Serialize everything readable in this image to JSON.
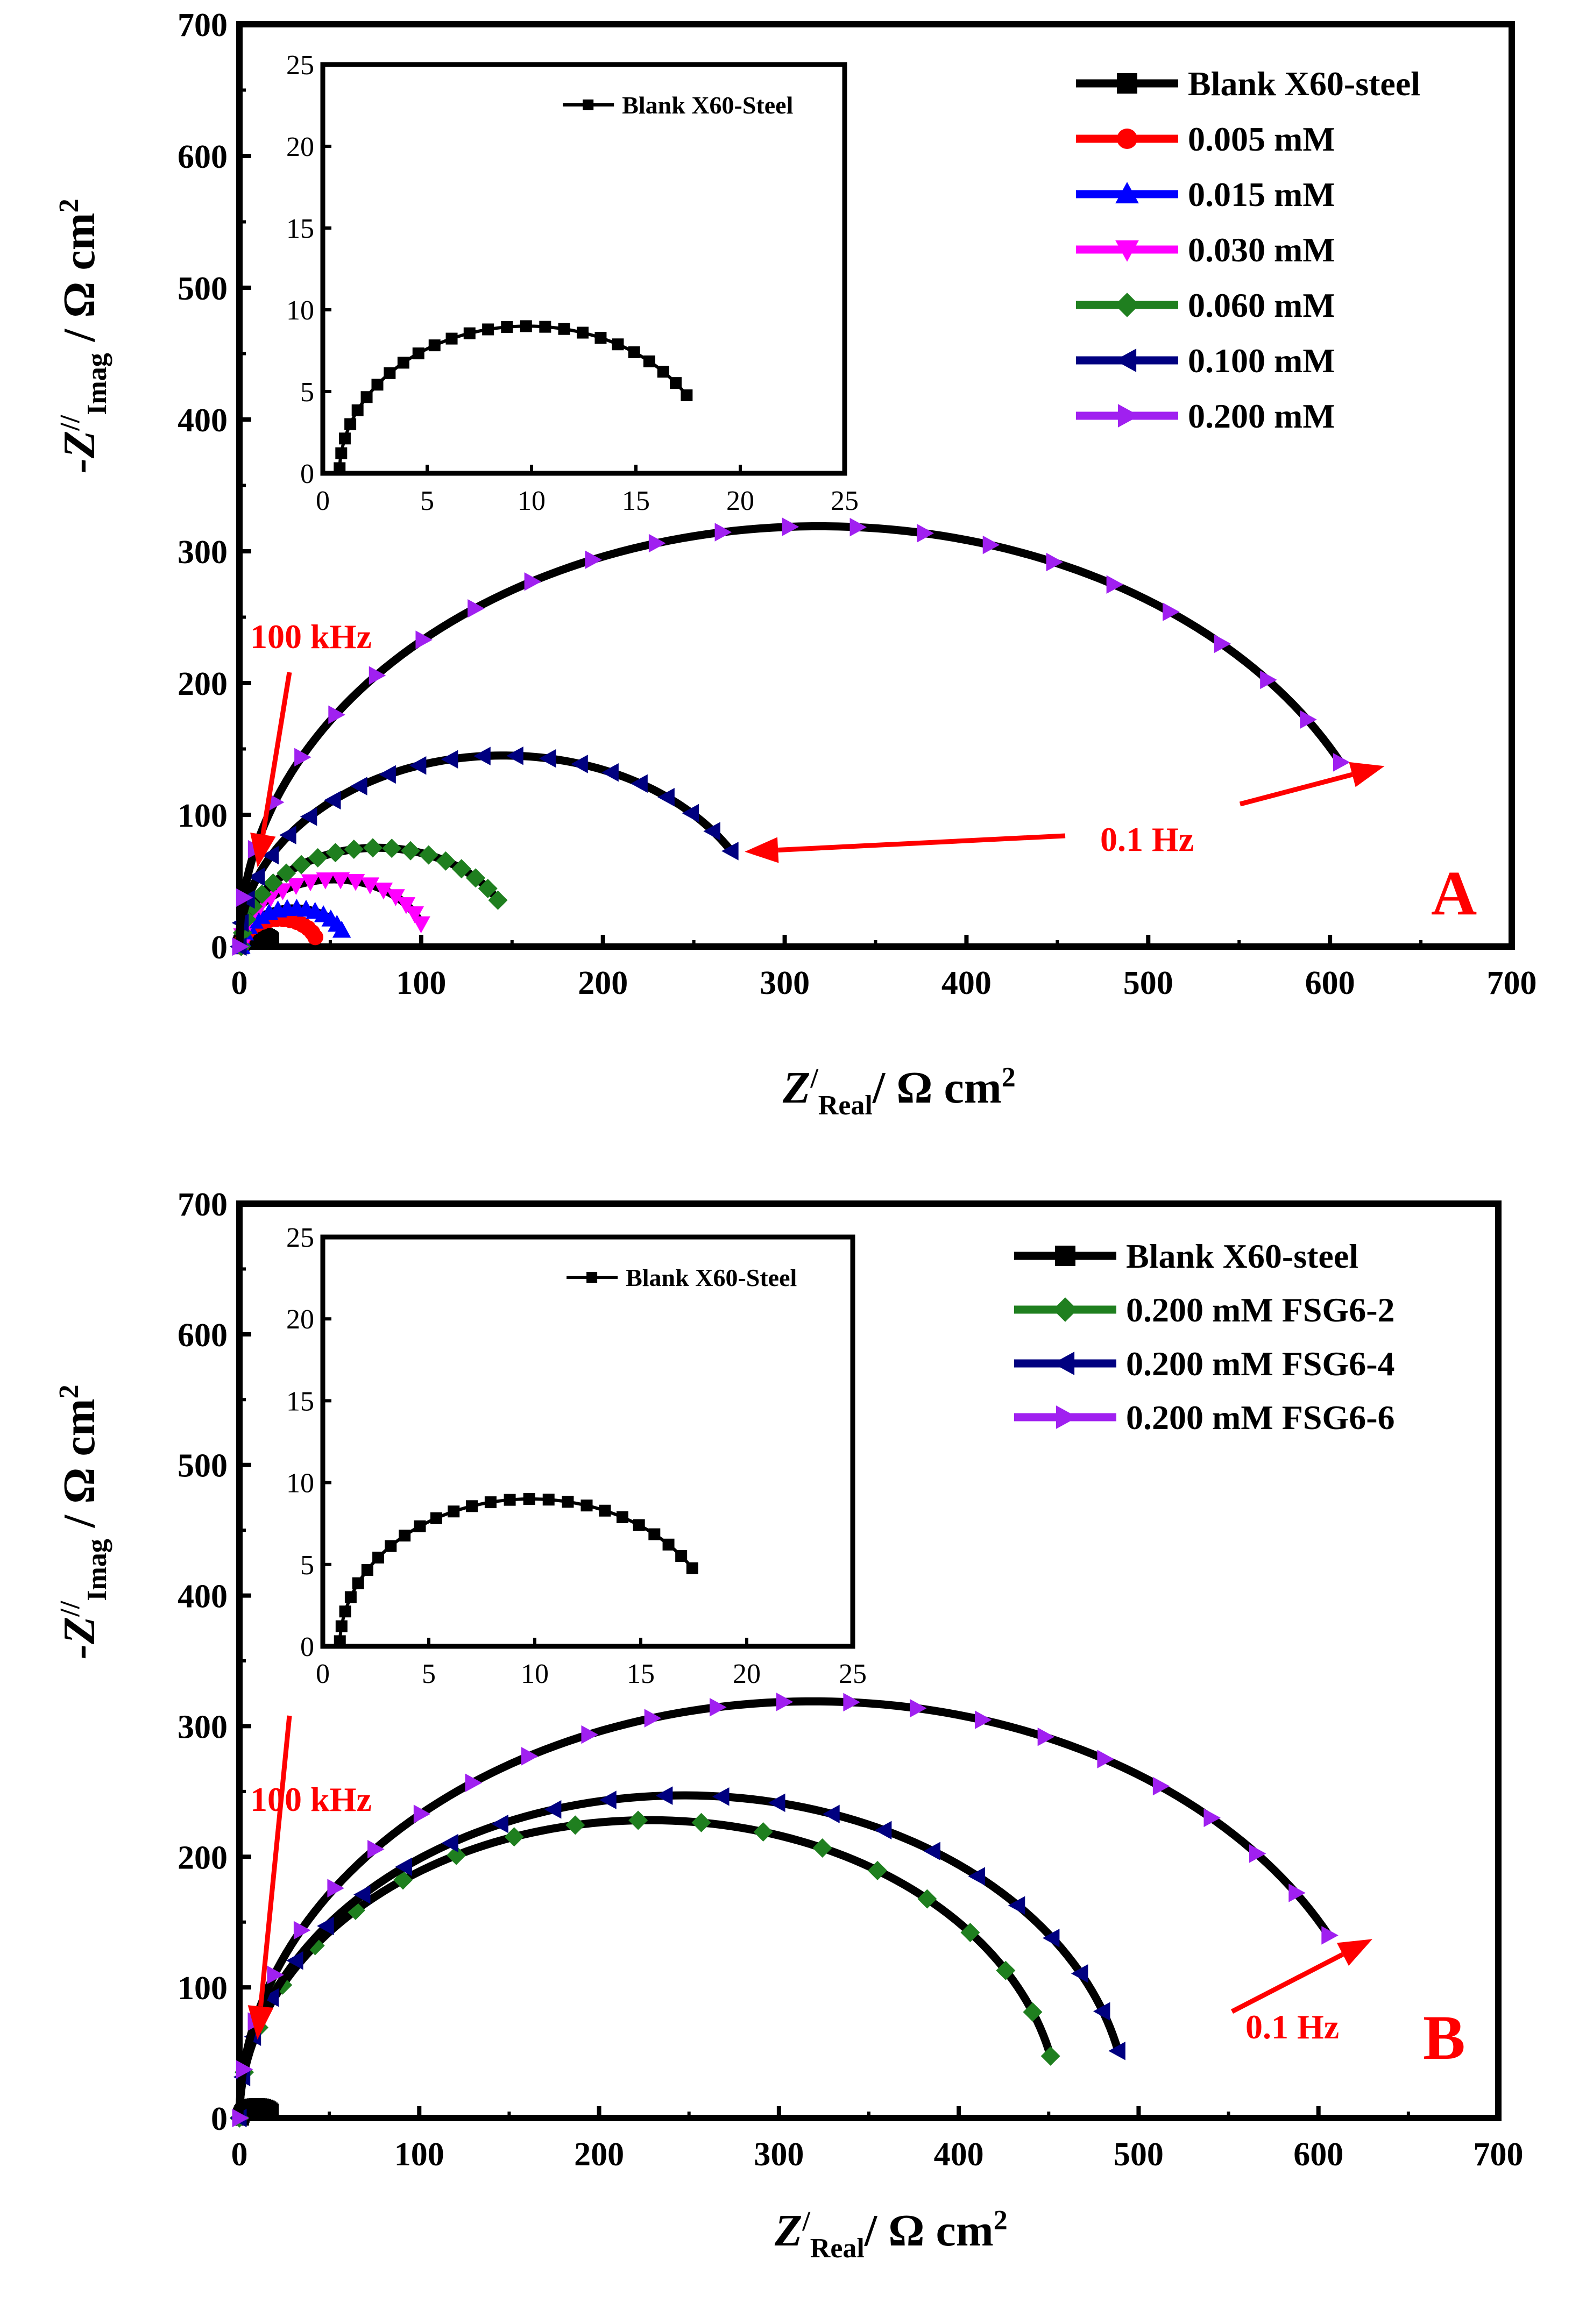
{
  "chart_data": [
    {
      "type": "line",
      "panel_label": "B",
      "title": "",
      "xlabel_main": "Z",
      "xlabel_sup": "/",
      "xlabel_sub": "Real",
      "xlabel_rest": "/ Ω cm",
      "xlabel_exp": "2",
      "ylabel_main": "-Z",
      "ylabel_sup": "//",
      "ylabel_sub": "Imag",
      "ylabel_rest": "/ Ω cm",
      "ylabel_exp": "2",
      "xlim": [
        0,
        700
      ],
      "ylim": [
        0,
        700
      ],
      "xticks": [
        "0",
        "100",
        "200",
        "300",
        "400",
        "500",
        "600",
        "700"
      ],
      "yticks": [
        "0",
        "100",
        "200",
        "300",
        "400",
        "500",
        "600",
        "700"
      ],
      "legend_position": "top-right",
      "annotations": [
        {
          "text": "100 kHz",
          "target_x": 10,
          "target_y": 60
        },
        {
          "text": "0.1 Hz",
          "target_x": 630,
          "target_y": 137
        }
      ],
      "series": [
        {
          "name": "Blank X60-steel",
          "color": "#000000",
          "marker": "square",
          "cx": 9.8,
          "r": 9.0,
          "start": 182,
          "end": 328,
          "n": 21
        },
        {
          "name": "0.200 mM FSG6-2",
          "color": "#1f7f1f",
          "marker": "diamond",
          "cx": 228,
          "r": 228,
          "start": 180,
          "end": 348,
          "n": 20
        },
        {
          "name": "0.200 mM FSG6-4",
          "color": "#000080",
          "marker": "triangle-left",
          "cx": 247,
          "r": 247,
          "start": 180,
          "end": 348,
          "n": 24
        },
        {
          "name": "0.200 mM FSG6-6",
          "color": "#a020f0",
          "marker": "triangle-right",
          "cx": 319,
          "r": 319,
          "start": 180,
          "end": 334,
          "n": 24
        }
      ],
      "inset": {
        "xlim": [
          0,
          25
        ],
        "ylim": [
          0,
          25
        ],
        "xticks": [
          "0",
          "5",
          "10",
          "15",
          "20",
          "25"
        ],
        "yticks": [
          "0",
          "5",
          "10",
          "15",
          "20",
          "25"
        ],
        "legend": "Blank X60-Steel",
        "series": {
          "name": "Blank X60-Steel",
          "color": "#000000",
          "marker": "square",
          "cx": 9.8,
          "r": 9.0,
          "start": 182,
          "end": 328,
          "n": 26
        }
      }
    },
    {
      "type": "line",
      "panel_label": "A",
      "title": "",
      "xlabel_main": "Z",
      "xlabel_sup": "/",
      "xlabel_sub": "Real",
      "xlabel_rest": "/ Ω cm",
      "xlabel_exp": "2",
      "ylabel_main": "-Z",
      "ylabel_sup": "//",
      "ylabel_sub": "Imag",
      "ylabel_rest": "/ Ω cm",
      "ylabel_exp": "2",
      "xlim": [
        0,
        700
      ],
      "ylim": [
        0,
        700
      ],
      "xticks": [
        "0",
        "100",
        "200",
        "300",
        "400",
        "500",
        "600",
        "700"
      ],
      "yticks": [
        "0",
        "100",
        "200",
        "300",
        "400",
        "500",
        "600",
        "700"
      ],
      "legend_position": "top-right",
      "annotations": [
        {
          "text": "100 kHz",
          "target_x": 10,
          "target_y": 60
        },
        {
          "text": "0.1 Hz",
          "target_x": 630,
          "target_y": 137
        },
        {
          "text": "0.1 Hz",
          "target_x": 278,
          "target_y": 72
        }
      ],
      "series": [
        {
          "name": "Blank X60-steel",
          "color": "#000000",
          "marker": "square",
          "cx": 9.8,
          "r": 9.0,
          "start": 182,
          "end": 328,
          "n": 21
        },
        {
          "name": "0.005 mM",
          "color": "#ff0000",
          "marker": "circle",
          "cx": 22,
          "r": 21,
          "start": 180,
          "end": 340,
          "n": 16
        },
        {
          "name": "0.015 mM",
          "color": "#0000ff",
          "marker": "triangle-up",
          "cx": 30,
          "r": 29,
          "start": 180,
          "end": 335,
          "n": 16
        },
        {
          "name": "0.030 mM",
          "color": "#ff00ff",
          "marker": "triangle-down",
          "cx": 52,
          "r": 51,
          "start": 180,
          "end": 340,
          "n": 18
        },
        {
          "name": "0.060 mM",
          "color": "#1f7f1f",
          "marker": "diamond",
          "cx": 76,
          "r": 75,
          "start": 180,
          "end": 332,
          "n": 20
        },
        {
          "name": "0.100 mM",
          "color": "#000080",
          "marker": "triangle-left",
          "cx": 145,
          "r": 145,
          "start": 180,
          "end": 330,
          "n": 22
        },
        {
          "name": "0.200 mM",
          "color": "#a020f0",
          "marker": "triangle-right",
          "cx": 319,
          "r": 319,
          "start": 180,
          "end": 334,
          "n": 24
        }
      ],
      "inset": {
        "xlim": [
          0,
          25
        ],
        "ylim": [
          0,
          25
        ],
        "xticks": [
          "0",
          "5",
          "10",
          "15",
          "20",
          "25"
        ],
        "yticks": [
          "0",
          "5",
          "10",
          "15",
          "20",
          "25"
        ],
        "legend": "Blank X60-Steel",
        "series": {
          "name": "Blank X60-Steel",
          "color": "#000000",
          "marker": "square",
          "cx": 9.8,
          "r": 9.0,
          "start": 182,
          "end": 328,
          "n": 26
        }
      }
    }
  ]
}
